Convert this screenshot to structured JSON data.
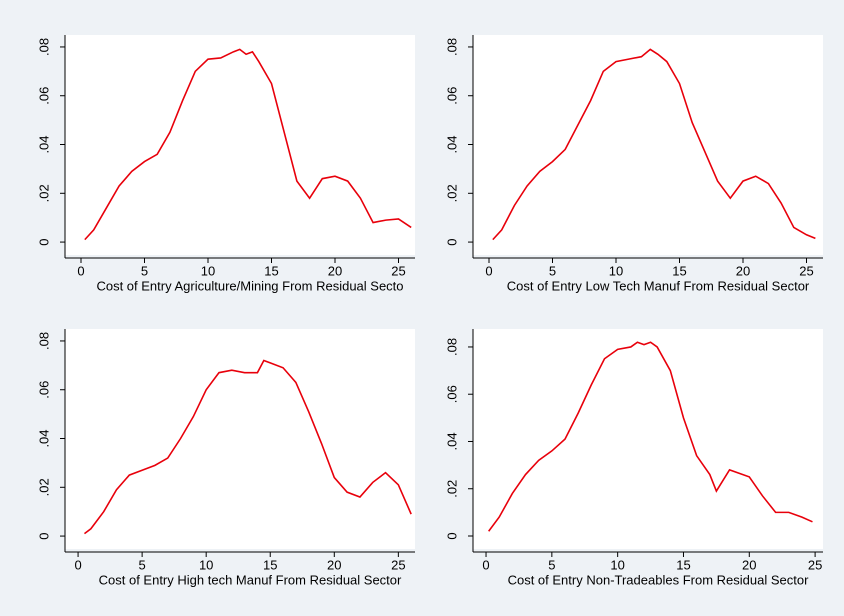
{
  "chart_data": [
    {
      "type": "line",
      "x_label": "Cost of Entry Agriculture/Mining From Residual Secto",
      "color": "#e8000b",
      "x": [
        0.3,
        1,
        2,
        3,
        4,
        5,
        6,
        7,
        8,
        9,
        10,
        11,
        12,
        12.5,
        13,
        13.5,
        14,
        15,
        16,
        17,
        18,
        18.5,
        19,
        20,
        21,
        22,
        23,
        24,
        25,
        26
      ],
      "values": [
        0.001,
        0.005,
        0.014,
        0.023,
        0.029,
        0.033,
        0.036,
        0.045,
        0.058,
        0.07,
        0.075,
        0.0755,
        0.078,
        0.079,
        0.077,
        0.078,
        0.074,
        0.065,
        0.045,
        0.025,
        0.018,
        0.022,
        0.026,
        0.027,
        0.025,
        0.018,
        0.008,
        0.009,
        0.0095,
        0.006
      ],
      "xlim": [
        -1.26,
        26.3
      ],
      "ylim": [
        -0.0053,
        0.0849
      ],
      "xticks": [
        0,
        5,
        10,
        15,
        20,
        25
      ],
      "yticks": [
        0,
        {
          "value": 0.02,
          "label": ".02"
        },
        {
          "value": 0.04,
          "label": ".04"
        },
        {
          "value": 0.06,
          "label": ".06"
        },
        {
          "value": 0.08,
          "label": ".08"
        }
      ]
    },
    {
      "type": "line",
      "x_label": "Cost of Entry Low Tech Manuf From Residual Sector",
      "color": "#e8000b",
      "x": [
        0.3,
        1,
        2,
        3,
        4,
        5,
        6,
        7,
        8,
        9,
        10,
        11,
        12,
        12.7,
        13.3,
        14,
        15,
        16,
        17,
        18,
        19,
        20,
        21,
        22,
        23,
        24,
        25,
        25.7
      ],
      "values": [
        0.001,
        0.005,
        0.015,
        0.023,
        0.029,
        0.033,
        0.038,
        0.048,
        0.058,
        0.07,
        0.074,
        0.075,
        0.076,
        0.079,
        0.077,
        0.074,
        0.065,
        0.049,
        0.037,
        0.025,
        0.018,
        0.025,
        0.027,
        0.024,
        0.016,
        0.006,
        0.003,
        0.0015
      ],
      "xlim": [
        -1.26,
        26.3
      ],
      "ylim": [
        -0.0053,
        0.0849
      ],
      "xticks": [
        0,
        5,
        10,
        15,
        20,
        25
      ],
      "yticks": [
        0,
        {
          "value": 0.02,
          "label": ".02"
        },
        {
          "value": 0.04,
          "label": ".04"
        },
        {
          "value": 0.06,
          "label": ".06"
        },
        {
          "value": 0.08,
          "label": ".08"
        }
      ]
    },
    {
      "type": "line",
      "x_label": "Cost of Entry High tech Manuf From Residual Sector",
      "color": "#e8000b",
      "x": [
        0.5,
        1,
        2,
        3,
        4,
        5,
        6,
        7,
        8,
        9,
        10,
        11,
        12,
        13,
        14,
        14.5,
        15,
        16,
        17,
        18,
        19,
        20,
        21,
        22,
        23,
        24,
        25,
        26
      ],
      "values": [
        0.001,
        0.003,
        0.01,
        0.019,
        0.025,
        0.027,
        0.029,
        0.032,
        0.04,
        0.049,
        0.06,
        0.067,
        0.068,
        0.067,
        0.067,
        0.072,
        0.071,
        0.069,
        0.063,
        0.051,
        0.038,
        0.024,
        0.018,
        0.016,
        0.022,
        0.026,
        0.021,
        0.009
      ],
      "xlim": [
        -1.02,
        26.3
      ],
      "ylim": [
        -0.0053,
        0.0849
      ],
      "xticks": [
        0,
        5,
        10,
        15,
        20,
        25
      ],
      "yticks": [
        0,
        {
          "value": 0.02,
          "label": ".02"
        },
        {
          "value": 0.04,
          "label": ".04"
        },
        {
          "value": 0.06,
          "label": ".06"
        },
        {
          "value": 0.08,
          "label": ".08"
        }
      ]
    },
    {
      "type": "line",
      "x_label": "Cost of Entry Non-Tradeables From Residual Sector",
      "color": "#e8000b",
      "x": [
        0.2,
        1,
        2,
        3,
        4,
        5,
        6,
        7,
        8,
        9,
        10,
        11,
        11.5,
        12,
        12.5,
        13,
        14,
        15,
        16,
        17,
        17.5,
        18.5,
        20,
        21,
        22,
        23,
        24,
        24.8
      ],
      "values": [
        0.002,
        0.008,
        0.018,
        0.026,
        0.032,
        0.036,
        0.041,
        0.052,
        0.064,
        0.075,
        0.079,
        0.08,
        0.082,
        0.081,
        0.082,
        0.08,
        0.07,
        0.05,
        0.034,
        0.026,
        0.019,
        0.028,
        0.025,
        0.017,
        0.01,
        0.01,
        0.008,
        0.006
      ],
      "xlim": [
        -0.99,
        25.6
      ],
      "ylim": [
        -0.0055,
        0.0876
      ],
      "xticks": [
        0,
        5,
        10,
        15,
        20,
        25
      ],
      "yticks": [
        0,
        {
          "value": 0.02,
          "label": ".02"
        },
        {
          "value": 0.04,
          "label": ".04"
        },
        {
          "value": 0.06,
          "label": ".06"
        },
        {
          "value": 0.08,
          "label": ".08"
        }
      ]
    }
  ]
}
